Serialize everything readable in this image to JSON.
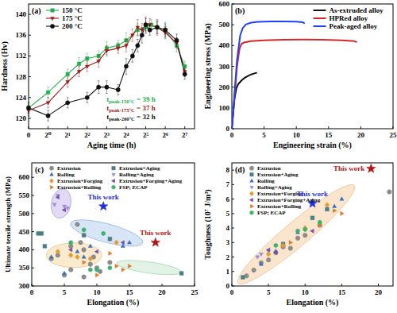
{
  "chart_data": [
    {
      "type": "line",
      "title": "(a)",
      "x_label": "Aging time (h)",
      "y_label": "Hardness (Hv)",
      "log": "x",
      "xlim": [
        0,
        181
      ],
      "ylim": [
        118,
        142
      ],
      "xticks": [
        0,
        {
          "value": 1,
          "label": "2⁰"
        },
        {
          "value": 2,
          "label": "2¹"
        },
        {
          "value": 4,
          "label": "2²"
        },
        {
          "value": 8,
          "label": "2³"
        },
        {
          "value": 16,
          "label": "2⁴"
        },
        {
          "value": 32,
          "label": "2⁵"
        },
        {
          "value": 64,
          "label": "2⁶"
        },
        {
          "value": 128,
          "label": "2⁷"
        }
      ],
      "yticks": [
        120,
        124,
        128,
        132,
        136,
        140
      ],
      "legend": "upper left",
      "series": [
        {
          "name": "150 °C",
          "color": "#22b14c",
          "marker": "square",
          "line_style": "solid",
          "x": [
            0,
            1,
            2,
            3,
            4,
            6,
            8,
            12,
            16,
            24,
            32,
            39,
            48,
            64,
            96,
            128
          ],
          "values": [
            122,
            125,
            128.5,
            130.5,
            131.5,
            132,
            133.5,
            134,
            135,
            137,
            137.5,
            138,
            137.5,
            137,
            134,
            130
          ],
          "errors": [
            1,
            1,
            1,
            1.2,
            1,
            1,
            1.2,
            1,
            1.5,
            1.2,
            1.2,
            1,
            1.2,
            1.5,
            1.2,
            1
          ]
        },
        {
          "name": "175 °C",
          "color": "#a01818",
          "marker": "triangle-down",
          "line_style": "solid",
          "x": [
            0,
            1,
            2,
            3,
            4,
            6,
            8,
            12,
            16,
            20,
            24,
            28,
            32,
            37,
            48,
            64,
            96,
            128
          ],
          "values": [
            121.5,
            123,
            127,
            129,
            130,
            131,
            133,
            133.5,
            134,
            136,
            137.5,
            137,
            138,
            138,
            137.5,
            136.5,
            134.5,
            129
          ],
          "errors": [
            1,
            1,
            1,
            1,
            1,
            1.2,
            1,
            1,
            1.2,
            1.2,
            1.5,
            1.2,
            1.5,
            1.2,
            1.5,
            1.2,
            1,
            1
          ]
        },
        {
          "name": "200 °C",
          "color": "#111111",
          "marker": "circle",
          "line_style": "solid",
          "x": [
            0,
            1,
            2,
            4,
            6,
            8,
            12,
            16,
            20,
            24,
            28,
            32,
            37,
            48,
            64,
            96,
            128
          ],
          "values": [
            122,
            120.5,
            123,
            124,
            126,
            126,
            125.5,
            130,
            132,
            134,
            136,
            138,
            137,
            137.5,
            137,
            135,
            128.5
          ],
          "errors": [
            1,
            1,
            1,
            1,
            1.2,
            1.2,
            1,
            1.5,
            1.2,
            1.2,
            1.5,
            1.2,
            1,
            1.2,
            1.2,
            1.2,
            1
          ]
        }
      ],
      "annotations": [
        {
          "text": "t",
          "sub": "peak-150°C",
          "suffix": " = 39 h",
          "color": "#22b14c"
        },
        {
          "text": "t",
          "sub": "peak-175°C",
          "suffix": " = 37 h",
          "color": "#a01818"
        },
        {
          "text": "t",
          "sub": "peak-200°C",
          "suffix": " = 32 h",
          "color": "#111111"
        }
      ]
    },
    {
      "type": "line",
      "title": "(b)",
      "x_label": "Engineering strain (%)",
      "y_label": "Engineering stress (MPa)",
      "xlim": [
        0,
        25
      ],
      "ylim": [
        0,
        600
      ],
      "xticks": [
        0,
        5,
        10,
        15,
        20,
        25
      ],
      "yticks": [
        0,
        100,
        200,
        300,
        400,
        500,
        600
      ],
      "legend": "upper right",
      "series": [
        {
          "name": "As-extruded alloy",
          "color": "#111111",
          "line_style": "solid",
          "x": [
            0,
            0.4,
            0.7,
            1,
            1.5,
            2,
            2.5,
            3,
            3.5,
            3.9
          ],
          "values": [
            0,
            140,
            195,
            215,
            232,
            245,
            254,
            261,
            266,
            270
          ]
        },
        {
          "name": "HPRed alloy",
          "color": "#d62728",
          "line_style": "solid",
          "x": [
            0,
            0.8,
            1.2,
            1.5,
            2,
            3,
            5,
            8,
            11,
            14,
            17,
            19,
            19.4
          ],
          "values": [
            0,
            300,
            385,
            408,
            416,
            421,
            425,
            428,
            429,
            428,
            425,
            421,
            416
          ]
        },
        {
          "name": "Peak-aged alloy",
          "color": "#1f3fff",
          "line_style": "solid",
          "x": [
            0,
            0.8,
            1.3,
            1.7,
            2.2,
            3,
            4,
            6,
            8,
            10,
            11,
            11.3
          ],
          "values": [
            0,
            330,
            450,
            485,
            502,
            510,
            514,
            516,
            516,
            515,
            512,
            506
          ]
        }
      ]
    },
    {
      "type": "scatter",
      "title": "(c)",
      "x_label": "Elongation (%)",
      "y_label": "Ultimate tensile strength (MPa)",
      "xlim": [
        0,
        25
      ],
      "ylim": [
        300,
        640
      ],
      "xticks": [
        0,
        5,
        10,
        15,
        20,
        25
      ],
      "yticks": [
        300,
        350,
        400,
        450,
        500,
        550,
        600
      ],
      "legend": "upper left",
      "series": [
        {
          "name": "Extrusion",
          "color": "#8c8c8c",
          "marker": "circle",
          "x": [
            4,
            5,
            6,
            7,
            7.5,
            8,
            9,
            10,
            10.5,
            8,
            12,
            3,
            6,
            9.5
          ],
          "values": [
            385,
            330,
            345,
            470,
            420,
            400,
            360,
            350,
            340,
            325,
            365,
            375,
            410,
            380
          ]
        },
        {
          "name": "Extrusion+Aging",
          "color": "#4a7f86",
          "marker": "square",
          "x": [
            1,
            1.5,
            2,
            8,
            12,
            23
          ],
          "values": [
            445,
            445,
            410,
            440,
            430,
            335
          ]
        },
        {
          "name": "Rolling",
          "color": "#3d6fc4",
          "marker": "triangle-up",
          "x": [
            3,
            5,
            7,
            8,
            9,
            14,
            15
          ],
          "values": [
            380,
            335,
            395,
            380,
            410,
            410,
            420
          ]
        },
        {
          "name": "Rolling+Aging",
          "color": "#9a8fd6",
          "marker": "triangle-down",
          "x": [
            4,
            5,
            5.5,
            3.5
          ],
          "values": [
            550,
            520,
            515,
            525
          ]
        },
        {
          "name": "Extrusion+Forging",
          "color": "#e69b2e",
          "marker": "diamond",
          "x": [
            4,
            6,
            9,
            13,
            7
          ],
          "values": [
            395,
            385,
            375,
            420,
            380
          ]
        },
        {
          "name": "Extrusion+Forging+Aging",
          "color": "#7b4fa6",
          "marker": "triangle-left",
          "x": [
            4,
            5,
            6,
            10,
            14
          ],
          "values": [
            545,
            510,
            400,
            395,
            420
          ]
        },
        {
          "name": "Extrusion+Rolling",
          "color": "#e07a2a",
          "marker": "triangle-right",
          "x": [
            8,
            10,
            12,
            13,
            14,
            15
          ],
          "values": [
            365,
            330,
            390,
            355,
            345,
            355
          ]
        },
        {
          "name": "FSP; ECAP",
          "color": "#3cb371",
          "marker": "hexagon",
          "x": [
            6,
            8,
            9,
            11,
            10,
            12
          ],
          "values": [
            420,
            455,
            345,
            445,
            345,
            350
          ]
        }
      ],
      "annotations": [
        {
          "text": "This work",
          "x": 11,
          "y": 520,
          "color": "#1e2ee6",
          "marker": "star"
        },
        {
          "text": "This work",
          "x": 19,
          "y": 420,
          "color": "#b01515",
          "marker": "star"
        }
      ]
    },
    {
      "type": "scatter",
      "title": "(d)",
      "x_label": "Elongation (%)",
      "y_label": "Toughness (10⁷ J/m³)",
      "xlim": [
        0,
        22
      ],
      "ylim": [
        0,
        8.5
      ],
      "xticks": [
        0,
        5,
        10,
        15,
        20
      ],
      "yticks": [
        0,
        1,
        2,
        3,
        4,
        5,
        6,
        7,
        8
      ],
      "legend": "upper left",
      "series": [
        {
          "name": "Extrusion",
          "color": "#8c8c8c",
          "marker": "circle",
          "x": [
            2,
            4,
            5,
            6,
            7,
            8,
            9,
            10,
            12,
            21.5,
            3
          ],
          "values": [
            0.7,
            1.6,
            1.8,
            2.3,
            2.7,
            2.6,
            3.3,
            3.5,
            4.2,
            6.5,
            1.1
          ]
        },
        {
          "name": "Extrusion+Aging",
          "color": "#4a7f86",
          "marker": "square",
          "x": [
            1.5,
            7,
            11,
            13
          ],
          "values": [
            0.6,
            2.9,
            4.7,
            5.3
          ]
        },
        {
          "name": "Rolling",
          "color": "#3d6fc4",
          "marker": "triangle-up",
          "x": [
            4,
            6,
            9,
            14,
            15
          ],
          "values": [
            1.5,
            2.4,
            3.7,
            5.5,
            6.0
          ]
        },
        {
          "name": "Rolling+Aging",
          "color": "#9a8fd6",
          "marker": "triangle-down",
          "x": [
            4,
            5,
            3.5
          ],
          "values": [
            2.2,
            2.4,
            2.0
          ]
        },
        {
          "name": "Extrusion+Forging",
          "color": "#e69b2e",
          "marker": "diamond",
          "x": [
            5,
            7,
            13,
            10
          ],
          "values": [
            2.2,
            2.8,
            5.6,
            4.0
          ]
        },
        {
          "name": "Extrusion+Forging+Aging",
          "color": "#7b4fa6",
          "marker": "triangle-left",
          "x": [
            5,
            6,
            11
          ],
          "values": [
            2.5,
            2.3,
            3.8
          ]
        },
        {
          "name": "Extrusion+Rolling",
          "color": "#e07a2a",
          "marker": "triangle-right",
          "x": [
            8,
            12,
            14,
            15
          ],
          "values": [
            3.0,
            4.2,
            5.2,
            5.0
          ]
        },
        {
          "name": "FSP; ECAP",
          "color": "#3cb371",
          "marker": "hexagon",
          "x": [
            6,
            9,
            10,
            12
          ],
          "values": [
            2.8,
            3.8,
            3.9,
            4.4
          ]
        }
      ],
      "annotations": [
        {
          "text": "This work",
          "x": 11,
          "y": 5.7,
          "color": "#1e2ee6",
          "marker": "star"
        },
        {
          "text": "This work",
          "x": 19,
          "y": 8.1,
          "color": "#b01515",
          "marker": "star"
        }
      ]
    }
  ]
}
